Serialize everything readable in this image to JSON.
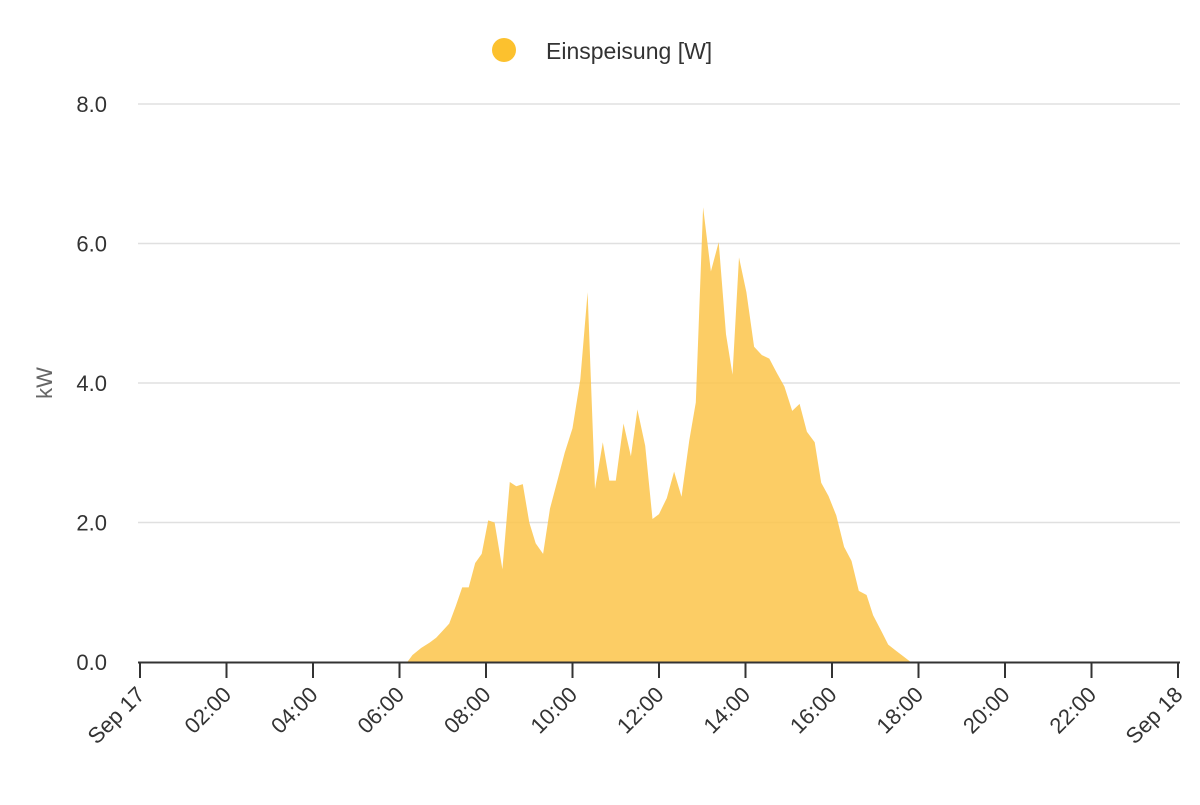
{
  "chart_data": {
    "type": "area",
    "legend": {
      "placement": "top-center"
    },
    "ylabel": "kW",
    "xlabel": "",
    "ylim": [
      0,
      8
    ],
    "y_ticks": [
      0,
      2,
      4,
      6,
      8
    ],
    "y_tick_labels": [
      "0.0",
      "2.0",
      "4.0",
      "6.0",
      "8.0"
    ],
    "x_range_hours": [
      0,
      24
    ],
    "x_ticks_hours": [
      0,
      2,
      4,
      6,
      8,
      10,
      12,
      14,
      16,
      18,
      20,
      22,
      24
    ],
    "x_tick_labels": [
      "Sep 17",
      "02:00",
      "04:00",
      "06:00",
      "08:00",
      "10:00",
      "12:00",
      "14:00",
      "16:00",
      "18:00",
      "20:00",
      "22:00",
      "Sep 18"
    ],
    "grid": true,
    "colors": {
      "series": "#FCC44A",
      "legend_marker": "#FCC12E",
      "grid": "#e0e0e0",
      "axis": "#333333"
    },
    "series": [
      {
        "name": "Einspeisung [W]",
        "points": [
          [
            6.18,
            0.0
          ],
          [
            6.3,
            0.1
          ],
          [
            6.5,
            0.2
          ],
          [
            6.7,
            0.28
          ],
          [
            6.85,
            0.35
          ],
          [
            7.0,
            0.45
          ],
          [
            7.15,
            0.55
          ],
          [
            7.3,
            0.8
          ],
          [
            7.45,
            1.07
          ],
          [
            7.6,
            1.07
          ],
          [
            7.75,
            1.42
          ],
          [
            7.9,
            1.55
          ],
          [
            8.05,
            2.03
          ],
          [
            8.2,
            2.0
          ],
          [
            8.38,
            1.33
          ],
          [
            8.55,
            2.58
          ],
          [
            8.7,
            2.52
          ],
          [
            8.85,
            2.55
          ],
          [
            9.0,
            2.0
          ],
          [
            9.15,
            1.7
          ],
          [
            9.32,
            1.55
          ],
          [
            9.48,
            2.2
          ],
          [
            9.65,
            2.6
          ],
          [
            9.82,
            3.0
          ],
          [
            10.0,
            3.35
          ],
          [
            10.18,
            4.05
          ],
          [
            10.35,
            5.3
          ],
          [
            10.52,
            2.48
          ],
          [
            10.7,
            3.15
          ],
          [
            10.85,
            2.6
          ],
          [
            11.0,
            2.6
          ],
          [
            11.18,
            3.42
          ],
          [
            11.35,
            2.95
          ],
          [
            11.5,
            3.62
          ],
          [
            11.68,
            3.1
          ],
          [
            11.85,
            2.05
          ],
          [
            12.0,
            2.12
          ],
          [
            12.18,
            2.35
          ],
          [
            12.35,
            2.73
          ],
          [
            12.52,
            2.37
          ],
          [
            12.7,
            3.18
          ],
          [
            12.85,
            3.72
          ],
          [
            13.02,
            6.52
          ],
          [
            13.2,
            5.6
          ],
          [
            13.38,
            6.02
          ],
          [
            13.55,
            4.7
          ],
          [
            13.7,
            4.12
          ],
          [
            13.85,
            5.8
          ],
          [
            14.02,
            5.3
          ],
          [
            14.2,
            4.52
          ],
          [
            14.38,
            4.4
          ],
          [
            14.55,
            4.35
          ],
          [
            14.72,
            4.15
          ],
          [
            14.9,
            3.95
          ],
          [
            15.08,
            3.6
          ],
          [
            15.25,
            3.7
          ],
          [
            15.42,
            3.3
          ],
          [
            15.6,
            3.15
          ],
          [
            15.75,
            2.57
          ],
          [
            15.92,
            2.38
          ],
          [
            16.1,
            2.1
          ],
          [
            16.28,
            1.65
          ],
          [
            16.45,
            1.45
          ],
          [
            16.62,
            1.02
          ],
          [
            16.8,
            0.96
          ],
          [
            16.95,
            0.67
          ],
          [
            17.12,
            0.47
          ],
          [
            17.3,
            0.25
          ],
          [
            17.48,
            0.16
          ],
          [
            17.65,
            0.08
          ],
          [
            17.82,
            0.0
          ]
        ]
      }
    ]
  }
}
